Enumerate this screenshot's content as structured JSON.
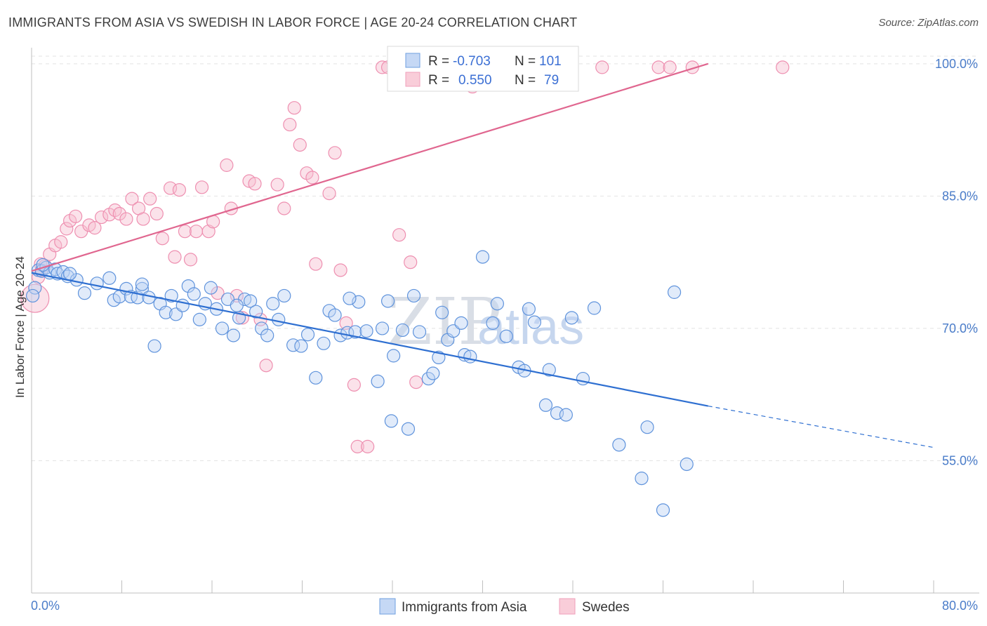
{
  "title": "IMMIGRANTS FROM ASIA VS SWEDISH IN LABOR FORCE | AGE 20-24 CORRELATION CHART",
  "source": "Source: ZipAtlas.com",
  "watermark": {
    "zip": "ZIP",
    "atlas": "atlas"
  },
  "legend": {
    "r_label": "R =",
    "n_label": "N =",
    "series1": {
      "r": "-0.703",
      "n": "101"
    },
    "series2": {
      "r": "0.550",
      "n": "79"
    }
  },
  "chart_data": {
    "type": "scatter",
    "title": "IMMIGRANTS FROM ASIA VS SWEDISH IN LABOR FORCE | AGE 20-24 CORRELATION CHART",
    "ylabel": "In Labor Force | Age 20-24",
    "xlim": [
      0,
      80
    ],
    "ylim": [
      40,
      101.5
    ],
    "x_tick_labels": [
      "0.0%",
      "80.0%"
    ],
    "y_ticks": [
      55,
      70,
      85,
      100
    ],
    "y_tick_labels": [
      "55.0%",
      "70.0%",
      "85.0%",
      "100.0%"
    ],
    "grid": true,
    "legend_position": "top-center",
    "colors": {
      "asia": "#6f9fe0",
      "asia_line": "#2e6fd1",
      "swedes": "#f0a0bb",
      "swedes_line": "#e0668f"
    },
    "series": [
      {
        "name": "Immigrants from Asia",
        "r": -0.703,
        "n": 101,
        "trend": {
          "x0": 0,
          "y0": 76.3,
          "x1": 60,
          "y1": 61.2,
          "dash_to_x": 80,
          "dash_to_y": 56.5
        },
        "points": [
          [
            0.3,
            74.6
          ],
          [
            0.6,
            76.6
          ],
          [
            0.9,
            76.5
          ],
          [
            1.3,
            76.9
          ],
          [
            1.6,
            76.3
          ],
          [
            2.1,
            76.7
          ],
          [
            2.3,
            76.2
          ],
          [
            2.8,
            76.4
          ],
          [
            3.2,
            75.9
          ],
          [
            4.0,
            75.5
          ],
          [
            4.7,
            74.0
          ],
          [
            5.8,
            75.1
          ],
          [
            6.9,
            75.7
          ],
          [
            7.3,
            73.2
          ],
          [
            7.8,
            73.6
          ],
          [
            8.4,
            74.5
          ],
          [
            8.8,
            73.6
          ],
          [
            9.4,
            73.5
          ],
          [
            9.8,
            74.5
          ],
          [
            10.4,
            73.5
          ],
          [
            10.9,
            68.0
          ],
          [
            11.4,
            72.8
          ],
          [
            11.9,
            71.8
          ],
          [
            12.4,
            73.7
          ],
          [
            12.8,
            71.6
          ],
          [
            13.4,
            72.6
          ],
          [
            13.9,
            74.8
          ],
          [
            14.4,
            73.9
          ],
          [
            14.9,
            71.0
          ],
          [
            15.4,
            72.8
          ],
          [
            15.9,
            74.6
          ],
          [
            16.4,
            72.2
          ],
          [
            16.9,
            70.0
          ],
          [
            17.4,
            73.3
          ],
          [
            17.9,
            69.2
          ],
          [
            18.4,
            71.2
          ],
          [
            18.9,
            73.3
          ],
          [
            19.4,
            73.1
          ],
          [
            19.9,
            71.9
          ],
          [
            20.4,
            70.0
          ],
          [
            20.9,
            69.2
          ],
          [
            21.4,
            72.8
          ],
          [
            21.9,
            71.0
          ],
          [
            22.4,
            73.7
          ],
          [
            23.2,
            68.1
          ],
          [
            23.9,
            68.0
          ],
          [
            24.5,
            69.3
          ],
          [
            25.2,
            64.4
          ],
          [
            25.9,
            68.3
          ],
          [
            26.4,
            72.0
          ],
          [
            26.9,
            71.5
          ],
          [
            27.4,
            69.2
          ],
          [
            28.0,
            69.5
          ],
          [
            28.7,
            69.6
          ],
          [
            29.0,
            73.0
          ],
          [
            29.7,
            69.7
          ],
          [
            30.7,
            64.0
          ],
          [
            31.1,
            70.0
          ],
          [
            31.6,
            73.1
          ],
          [
            31.9,
            59.5
          ],
          [
            32.1,
            66.9
          ],
          [
            32.9,
            69.8
          ],
          [
            33.4,
            58.6
          ],
          [
            33.9,
            73.7
          ],
          [
            34.4,
            69.6
          ],
          [
            35.2,
            64.3
          ],
          [
            35.6,
            64.9
          ],
          [
            36.1,
            66.7
          ],
          [
            36.4,
            71.8
          ],
          [
            36.9,
            68.7
          ],
          [
            37.4,
            69.7
          ],
          [
            38.1,
            70.6
          ],
          [
            38.4,
            67.0
          ],
          [
            38.9,
            66.8
          ],
          [
            40.0,
            78.1
          ],
          [
            40.9,
            70.6
          ],
          [
            41.3,
            72.8
          ],
          [
            42.1,
            69.1
          ],
          [
            43.2,
            65.6
          ],
          [
            43.7,
            65.2
          ],
          [
            44.1,
            72.2
          ],
          [
            44.6,
            70.7
          ],
          [
            45.6,
            61.3
          ],
          [
            45.9,
            65.3
          ],
          [
            46.6,
            60.4
          ],
          [
            47.4,
            60.2
          ],
          [
            47.9,
            71.2
          ],
          [
            48.9,
            64.3
          ],
          [
            49.9,
            72.3
          ],
          [
            52.1,
            56.8
          ],
          [
            54.1,
            53.0
          ],
          [
            54.6,
            58.8
          ],
          [
            56.0,
            49.4
          ],
          [
            57.0,
            74.1
          ],
          [
            58.1,
            54.6
          ],
          [
            0.1,
            73.7
          ],
          [
            1.0,
            77.2
          ],
          [
            3.4,
            76.2
          ],
          [
            9.8,
            75.0
          ],
          [
            18.2,
            72.6
          ],
          [
            28.2,
            73.4
          ]
        ]
      },
      {
        "name": "Swedes",
        "r": 0.55,
        "n": 79,
        "trend": {
          "x0": 0,
          "y0": 76.5,
          "x1": 60,
          "y1": 100
        },
        "points": [
          [
            0.3,
            73.4
          ],
          [
            0.6,
            75.8
          ],
          [
            0.9,
            76.6
          ],
          [
            1.2,
            77.1
          ],
          [
            1.6,
            78.4
          ],
          [
            2.1,
            79.4
          ],
          [
            2.6,
            79.8
          ],
          [
            3.1,
            81.3
          ],
          [
            3.4,
            82.2
          ],
          [
            3.9,
            82.7
          ],
          [
            4.4,
            81.0
          ],
          [
            5.1,
            81.7
          ],
          [
            5.6,
            81.4
          ],
          [
            6.2,
            82.6
          ],
          [
            6.9,
            82.9
          ],
          [
            7.4,
            83.4
          ],
          [
            7.8,
            83.0
          ],
          [
            8.4,
            82.4
          ],
          [
            8.9,
            84.7
          ],
          [
            9.5,
            83.6
          ],
          [
            9.9,
            82.4
          ],
          [
            10.5,
            84.7
          ],
          [
            11.1,
            83.0
          ],
          [
            11.6,
            80.2
          ],
          [
            12.3,
            85.9
          ],
          [
            12.7,
            78.1
          ],
          [
            13.1,
            85.7
          ],
          [
            13.6,
            81.0
          ],
          [
            14.1,
            77.8
          ],
          [
            14.6,
            81.0
          ],
          [
            15.1,
            86.0
          ],
          [
            15.7,
            81.0
          ],
          [
            16.1,
            82.1
          ],
          [
            16.5,
            74.0
          ],
          [
            17.3,
            88.5
          ],
          [
            17.7,
            83.6
          ],
          [
            18.2,
            73.7
          ],
          [
            18.7,
            71.2
          ],
          [
            19.3,
            86.7
          ],
          [
            19.8,
            86.4
          ],
          [
            20.3,
            71.0
          ],
          [
            20.8,
            65.8
          ],
          [
            21.8,
            86.3
          ],
          [
            22.4,
            83.6
          ],
          [
            22.9,
            93.1
          ],
          [
            23.3,
            95.0
          ],
          [
            23.8,
            90.8
          ],
          [
            24.4,
            87.6
          ],
          [
            24.9,
            87.1
          ],
          [
            25.2,
            77.3
          ],
          [
            26.4,
            85.3
          ],
          [
            26.9,
            89.9
          ],
          [
            27.4,
            76.6
          ],
          [
            27.9,
            70.6
          ],
          [
            28.6,
            63.6
          ],
          [
            28.9,
            56.6
          ],
          [
            29.8,
            56.6
          ],
          [
            31.1,
            99.6
          ],
          [
            31.6,
            99.6
          ],
          [
            32.6,
            80.6
          ],
          [
            33.3,
            99.6
          ],
          [
            33.6,
            77.5
          ],
          [
            34.1,
            63.9
          ],
          [
            35.6,
            99.6
          ],
          [
            36.6,
            99.6
          ],
          [
            37.6,
            99.6
          ],
          [
            38.6,
            99.6
          ],
          [
            39.1,
            97.4
          ],
          [
            40.6,
            99.6
          ],
          [
            41.6,
            99.6
          ],
          [
            43.6,
            99.6
          ],
          [
            45.6,
            99.6
          ],
          [
            47.6,
            99.6
          ],
          [
            50.6,
            99.6
          ],
          [
            55.6,
            99.6
          ],
          [
            56.6,
            99.6
          ],
          [
            58.6,
            99.6
          ],
          [
            66.6,
            99.6
          ],
          [
            0.8,
            77.3
          ]
        ]
      }
    ]
  },
  "bottom_legend": [
    "Immigrants from Asia",
    "Swedes"
  ]
}
